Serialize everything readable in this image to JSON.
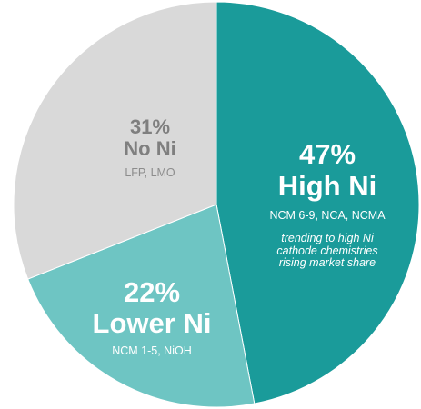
{
  "chart_data": {
    "type": "pie",
    "title": "",
    "start_angle_deg": 0,
    "direction": "clockwise",
    "slices": [
      {
        "label": "High Ni",
        "value": 47,
        "value_label": "47%",
        "sublabel": "NCM 6-9, NCA, NCMA",
        "note": "trending to high Ni cathode chemistries rising market share",
        "color": "#1a9b9a",
        "text_color": "#ffffff",
        "sub_color": "#ffffff"
      },
      {
        "label": "Lower Ni",
        "value": 22,
        "value_label": "22%",
        "sublabel": "NCM 1-5, NiOH",
        "color": "#6ec5c3",
        "text_color": "#ffffff",
        "sub_color": "#ffffff"
      },
      {
        "label": "No Ni",
        "value": 31,
        "value_label": "31%",
        "sublabel": "LFP, LMO",
        "color": "#d9d9d9",
        "text_color": "#7f7f7f",
        "sub_color": "#8c8c8c"
      }
    ]
  }
}
